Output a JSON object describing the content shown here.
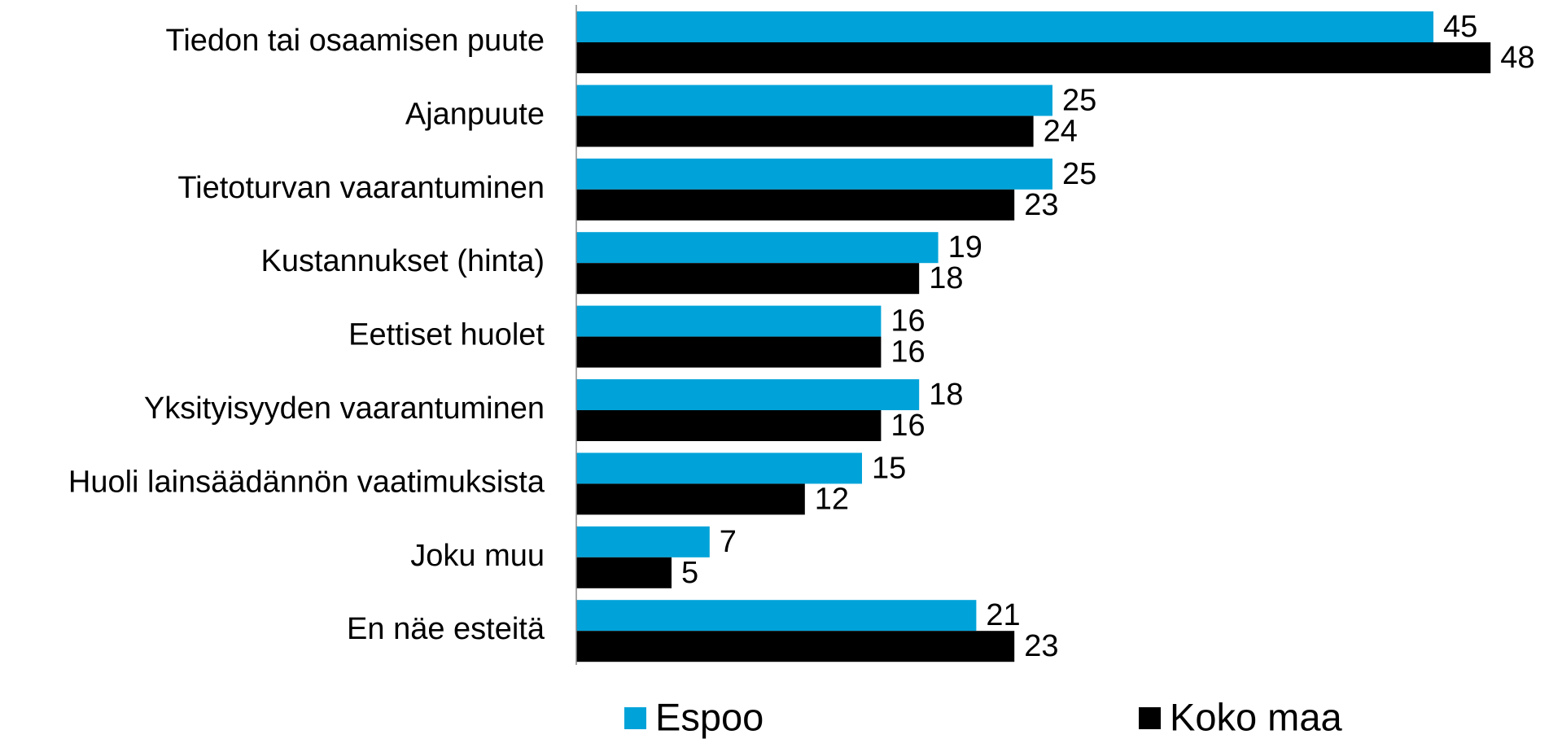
{
  "chart_data": {
    "type": "bar",
    "orientation": "horizontal",
    "categories": [
      "Tiedon tai osaamisen puute",
      "Ajanpuute",
      "Tietoturvan vaarantuminen",
      "Kustannukset (hinta)",
      "Eettiset huolet",
      "Yksityisyyden vaarantuminen",
      "Huoli lainsäädännön vaatimuksista",
      "Joku muu",
      "En näe esteitä"
    ],
    "series": [
      {
        "name": "Espoo",
        "color": "#00a3d9",
        "values": [
          45,
          25,
          25,
          19,
          16,
          18,
          15,
          7,
          21
        ]
      },
      {
        "name": "Koko maa",
        "color": "#000000",
        "values": [
          48,
          24,
          23,
          18,
          16,
          16,
          12,
          5,
          23
        ]
      }
    ],
    "legend": "bottom"
  }
}
